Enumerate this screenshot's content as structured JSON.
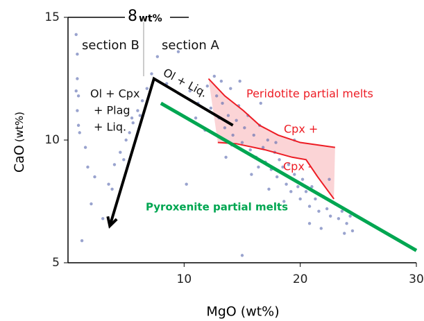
{
  "chart_data": {
    "type": "scatter",
    "x_label": "MgO (wt%)",
    "y_label": "CaO",
    "y_label_unit": "(wt%)",
    "xlim": [
      0,
      30
    ],
    "ylim": [
      5,
      15
    ],
    "xticks": [
      10,
      20,
      30
    ],
    "yticks": [
      5,
      10,
      15
    ],
    "annotations": {
      "line_value": "8",
      "line_unit": "wt%",
      "section_b": "section B",
      "section_a": "section A",
      "ol_liq": "Ol + Liq.",
      "ol_cpx": "Ol + Cpx",
      "plag": "+ Plag",
      "liq": "+ Liq.",
      "peridotite": "Peridotite partial melts",
      "cpx_plus": "Cpx +",
      "cpx_minus": "Cpx -",
      "pyroxenite": "Pyroxenite partial melts"
    },
    "point_color": "#5565ad",
    "x": [
      0.7,
      0.8,
      0.8,
      0.9,
      0.8,
      0.9,
      1.0,
      0.7,
      1.5,
      1.7,
      2.3,
      3.0,
      1.2,
      2.0,
      3.5,
      4.0,
      4.5,
      5.0,
      5.3,
      5.6,
      6.0,
      6.4,
      6.8,
      7.2,
      4.8,
      5.5,
      6.2,
      3.8,
      7.7,
      9.5,
      8.5,
      12.0,
      12.3,
      12.8,
      13.0,
      13.3,
      13.5,
      13.8,
      14.0,
      14.2,
      14.5,
      14.7,
      15.0,
      15.2,
      15.5,
      15.7,
      16.0,
      16.2,
      16.5,
      16.8,
      17.0,
      17.2,
      17.5,
      17.8,
      18.0,
      18.2,
      18.5,
      18.8,
      19.0,
      19.2,
      19.5,
      19.8,
      20.0,
      20.2,
      20.5,
      20.8,
      21.0,
      21.3,
      21.6,
      22.0,
      22.3,
      22.6,
      23.0,
      23.3,
      23.6,
      24.0,
      24.3,
      24.5,
      11.2,
      10.5,
      11.8,
      13.6,
      15.8,
      17.3,
      18.6,
      21.8,
      19.5,
      16.6,
      14.8,
      22.5,
      15.0,
      10.2,
      11.0,
      20.8,
      23.8,
      17.9,
      16.4,
      14.1,
      12.6,
      13.2
    ],
    "y": [
      14.3,
      13.5,
      12.5,
      11.8,
      11.2,
      10.6,
      10.3,
      12.0,
      9.7,
      8.9,
      8.5,
      6.8,
      5.9,
      7.4,
      8.2,
      9.0,
      9.5,
      10.0,
      10.3,
      10.7,
      11.2,
      11.6,
      12.1,
      12.7,
      9.2,
      10.9,
      11.0,
      8.0,
      13.4,
      13.6,
      12.3,
      12.2,
      11.3,
      11.8,
      10.9,
      11.5,
      10.5,
      11.0,
      12.1,
      10.2,
      10.8,
      11.4,
      9.9,
      10.5,
      11.0,
      9.6,
      10.2,
      9.3,
      10.6,
      9.7,
      9.1,
      10.0,
      8.8,
      9.5,
      8.5,
      9.2,
      8.9,
      8.2,
      9.0,
      7.9,
      8.6,
      8.1,
      7.6,
      8.4,
      7.9,
      7.3,
      8.1,
      7.6,
      7.1,
      7.7,
      7.2,
      6.9,
      7.4,
      6.8,
      7.1,
      6.6,
      6.9,
      6.3,
      11.5,
      12.0,
      10.4,
      9.3,
      8.6,
      8.0,
      7.5,
      6.4,
      10.0,
      11.5,
      12.4,
      8.4,
      5.3,
      8.2,
      10.9,
      6.6,
      6.2,
      9.9,
      8.9,
      9.8,
      12.6,
      12.4
    ],
    "lines": [
      {
        "color": "#ed1c24",
        "x": [
          12.1,
          13.5,
          15.1,
          16.5,
          18.1,
          20.0,
          23.0
        ],
        "y": [
          12.5,
          11.8,
          11.2,
          10.6,
          10.2,
          9.9,
          9.7
        ]
      },
      {
        "color": "#ed1c24",
        "x": [
          12.9,
          14.5,
          17.0,
          19.3,
          20.5,
          21.5,
          22.9
        ],
        "y": [
          9.9,
          9.85,
          9.6,
          9.3,
          9.2,
          8.5,
          7.6
        ]
      },
      {
        "color": "#000000",
        "x": [
          14.2,
          7.4,
          3.6
        ],
        "y": [
          10.6,
          12.5,
          6.5
        ]
      },
      {
        "color": "#00a651",
        "x": [
          8.0,
          30.0
        ],
        "y": [
          11.5,
          5.5
        ]
      }
    ],
    "field_color": "#f9c6c8"
  }
}
